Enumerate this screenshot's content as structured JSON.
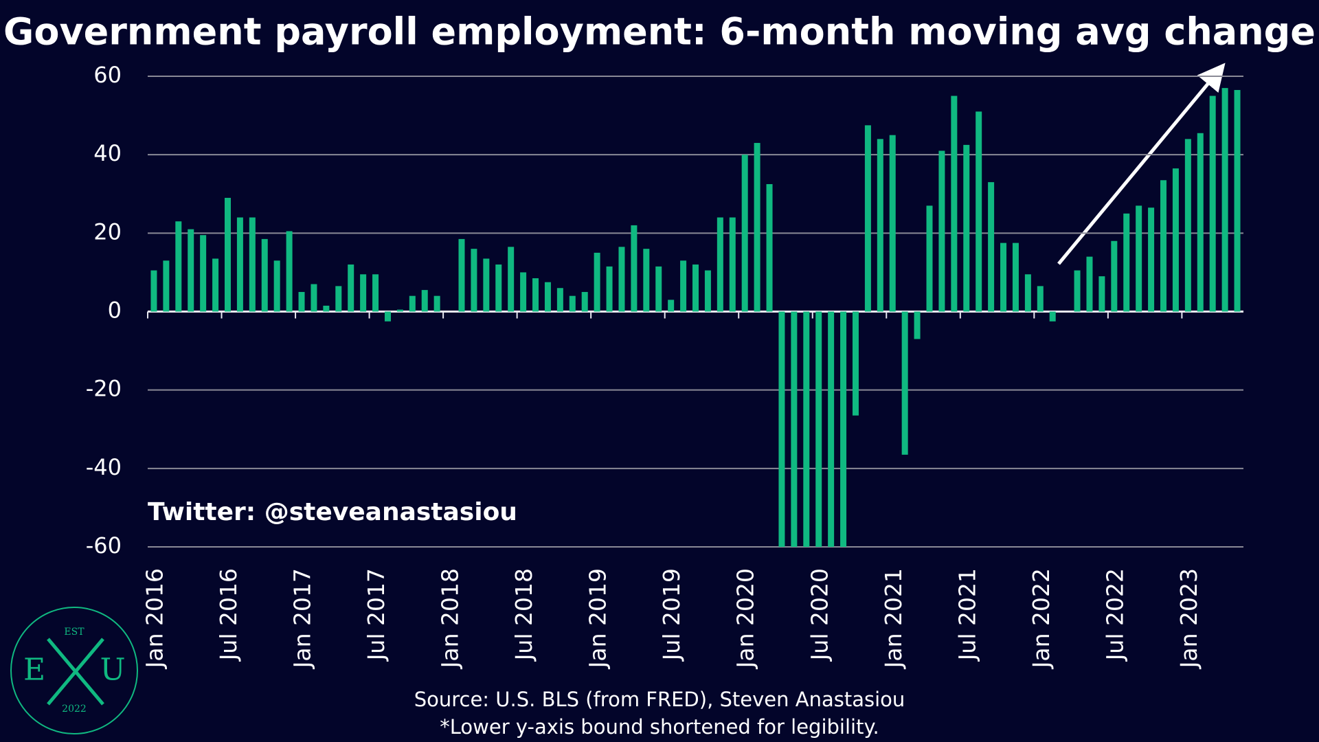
{
  "chart_data": {
    "type": "bar",
    "title": "Government payroll employment: 6-month moving avg change",
    "categories": [
      "Jan 2016",
      null,
      null,
      null,
      null,
      null,
      "Jul 2016",
      null,
      null,
      null,
      null,
      null,
      "Jan 2017",
      null,
      null,
      null,
      null,
      null,
      "Jul 2017",
      null,
      null,
      null,
      null,
      null,
      "Jan 2018",
      null,
      null,
      null,
      null,
      null,
      "Jul 2018",
      null,
      null,
      null,
      null,
      null,
      "Jan 2019",
      null,
      null,
      null,
      null,
      null,
      "Jul 2019",
      null,
      null,
      null,
      null,
      null,
      "Jan 2020",
      null,
      null,
      null,
      null,
      null,
      "Jul 2020",
      null,
      null,
      null,
      null,
      null,
      "Jan 2021",
      null,
      null,
      null,
      null,
      null,
      "Jul 2021",
      null,
      null,
      null,
      null,
      null,
      "Jan 2022",
      null,
      null,
      null,
      null,
      null,
      "Jul 2022",
      null,
      null,
      null,
      null,
      null,
      "Jan 2023",
      null,
      null,
      null,
      null
    ],
    "values": [
      10.5,
      13,
      23,
      21,
      19.5,
      13.5,
      29,
      24,
      24,
      18.5,
      13,
      20.5,
      5,
      7,
      1.5,
      6.5,
      12,
      9.5,
      9.5,
      -2.5,
      0.5,
      4,
      5.5,
      4,
      0,
      18.5,
      16,
      13.5,
      12,
      16.5,
      10,
      8.5,
      7.5,
      6,
      4,
      5,
      15,
      11.5,
      16.5,
      22,
      16,
      11.5,
      3,
      13,
      12,
      10.5,
      24,
      24,
      40,
      43,
      32.5,
      -60,
      -60,
      -60,
      -60,
      -60,
      -60,
      -26.5,
      47.5,
      44,
      45,
      -36.5,
      -7,
      27,
      41,
      55,
      42.5,
      51,
      33,
      17.5,
      17.5,
      9.5,
      6.5,
      -2.5,
      0,
      10.5,
      14,
      9,
      18,
      25,
      27,
      26.5,
      33.5,
      36.5,
      44,
      45.5,
      55,
      57,
      56.5
    ],
    "color": "#10b981",
    "ylim": [
      -60,
      60
    ],
    "yticks": [
      -60,
      -40,
      -20,
      0,
      20,
      40,
      60
    ],
    "grid": true,
    "watermark": "Twitter: @steveanastasiou",
    "source": "Source: U.S. BLS (from FRED), Steven Anastasiou",
    "note": "*Lower y-axis bound shortened for legibility.",
    "logo": {
      "est": "EST",
      "left": "E",
      "right": "U",
      "year": "2022"
    }
  }
}
